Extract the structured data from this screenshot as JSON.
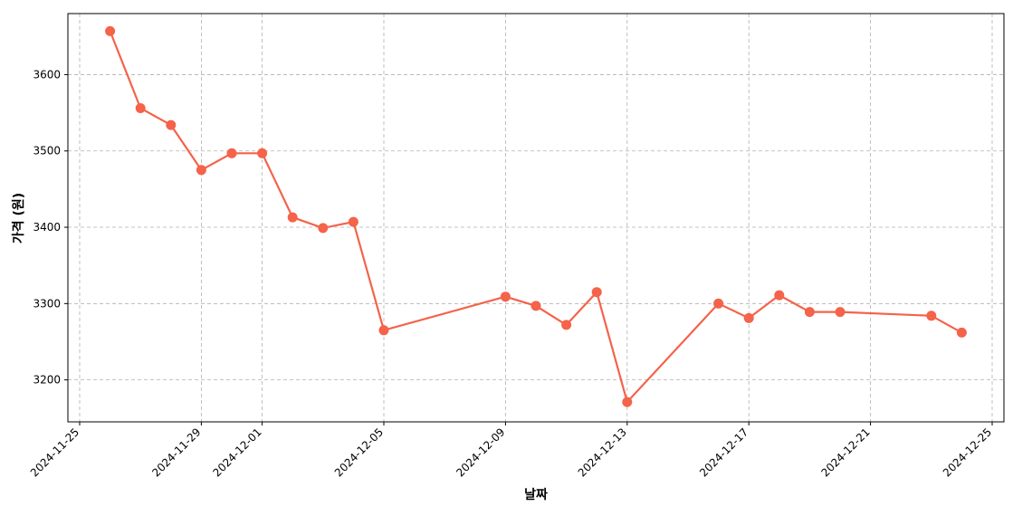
{
  "chart_data": {
    "type": "line",
    "title": "",
    "xlabel": "날짜",
    "ylabel": "가격 (원)",
    "x_tick_labels": [
      "2024-11-25",
      "2024-11-29",
      "2024-12-01",
      "2024-12-05",
      "2024-12-09",
      "2024-12-13",
      "2024-12-17",
      "2024-12-21",
      "2024-12-25"
    ],
    "y_tick_labels": [
      "3200",
      "3300",
      "3400",
      "3500",
      "3600"
    ],
    "y_ticks": [
      3200,
      3300,
      3400,
      3500,
      3600
    ],
    "xlim": [
      "2024-11-24",
      "2024-12-25"
    ],
    "ylim": [
      3145,
      3680
    ],
    "grid": true,
    "color": "#f4634a",
    "series": [
      {
        "x": [
          "2024-11-26",
          "2024-11-27",
          "2024-11-28",
          "2024-11-29",
          "2024-11-30",
          "2024-12-01",
          "2024-12-02",
          "2024-12-03",
          "2024-12-04",
          "2024-12-05",
          "2024-12-09",
          "2024-12-10",
          "2024-12-11",
          "2024-12-12",
          "2024-12-13",
          "2024-12-16",
          "2024-12-17",
          "2024-12-18",
          "2024-12-19",
          "2024-12-20",
          "2024-12-23",
          "2024-12-24"
        ],
        "values": [
          3657,
          3556,
          3534,
          3475,
          3497,
          3497,
          3413,
          3399,
          3407,
          3265,
          3309,
          3297,
          3272,
          3315,
          3171,
          3300,
          3281,
          3311,
          3289,
          3289,
          3284,
          3262
        ]
      }
    ]
  }
}
